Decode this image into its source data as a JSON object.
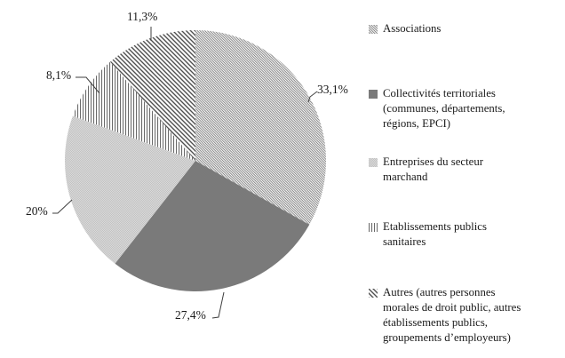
{
  "chart_data": {
    "type": "pie",
    "title": "",
    "legend_position": "right",
    "direction": "clockwise",
    "start_angle_deg": 0,
    "colors": {
      "dark_gray": "#7a7a7a",
      "checker_light": "#c2c2c2",
      "checker_lighter": "#dadada",
      "hatch_line": "#4f4f4f",
      "fine_hatch_line": "#757575",
      "leader_line": "#3f3f3f",
      "text": "#1a1a1a",
      "background": "#ffffff"
    },
    "slices": [
      {
        "name": "Associations",
        "value": 33.1,
        "label": "33,1%",
        "pattern": "diagonal-fine",
        "legend_lines": [
          "Associations"
        ]
      },
      {
        "name": "Collectivités territoriales (communes, départements, régions, EPCI)",
        "value": 27.4,
        "label": "27,4%",
        "pattern": "solid-dark-gray",
        "legend_lines": [
          "Collectivités territoriales",
          "(communes, départements,",
          "régions, EPCI)"
        ]
      },
      {
        "name": "Entreprises du secteur marchand",
        "value": 20,
        "label": "20%",
        "pattern": "checker-light-gray",
        "legend_lines": [
          "Entreprises du secteur",
          "marchand"
        ]
      },
      {
        "name": "Etablissements publics sanitaires",
        "value": 8.1,
        "label": "8,1%",
        "pattern": "vertical-lines",
        "legend_lines": [
          "Etablissements publics",
          "sanitaires"
        ]
      },
      {
        "name": "Autres (autres personnes morales de droit public, autres établissements publics, groupements d'employeurs)",
        "value": 11.3,
        "label": "11,3%",
        "pattern": "diagonal-wide",
        "legend_lines": [
          "Autres (autres personnes",
          "morales de droit public, autres",
          "établissements publics,",
          "groupements d’employeurs)"
        ]
      }
    ]
  }
}
